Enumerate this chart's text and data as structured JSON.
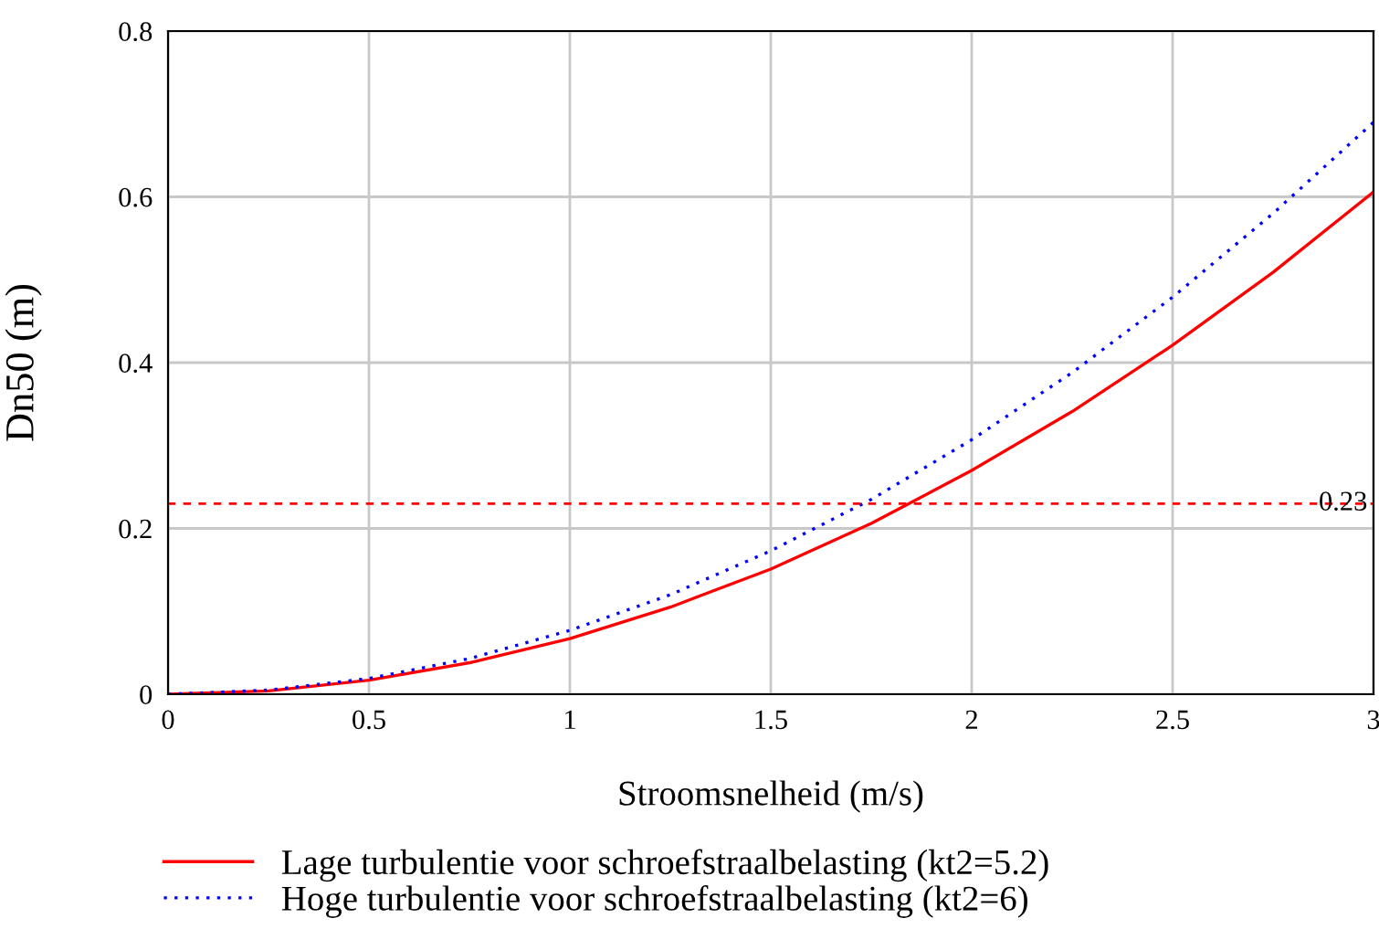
{
  "chart_data": {
    "type": "line",
    "xlabel": "Stroomsnelheid (m/s)",
    "ylabel": "Dn50 (m)",
    "x": [
      0,
      0.25,
      0.5,
      0.75,
      1,
      1.25,
      1.5,
      1.75,
      2,
      2.25,
      2.5,
      2.75,
      3
    ],
    "series": [
      {
        "name": "Lage turbulentie voor schroefstraalbelasting (kt2=5.2)",
        "color": "#ff0000",
        "line_style": "solid",
        "values": [
          0,
          0.004,
          0.017,
          0.038,
          0.067,
          0.105,
          0.151,
          0.206,
          0.27,
          0.341,
          0.421,
          0.509,
          0.606
        ]
      },
      {
        "name": "Hoge turbulentie voor schroefstraalbelasting (kt2=6)",
        "color": "#0000ff",
        "line_style": "dotted",
        "values": [
          0,
          0.005,
          0.019,
          0.043,
          0.077,
          0.12,
          0.173,
          0.235,
          0.307,
          0.388,
          0.479,
          0.58,
          0.69
        ]
      }
    ],
    "xlim": [
      0,
      3
    ],
    "xticks": [
      0,
      0.5,
      1,
      1.5,
      2,
      2.5,
      3
    ],
    "ylim": [
      0,
      0.8
    ],
    "yticks": [
      0,
      0.2,
      0.4,
      0.6,
      0.8
    ],
    "ref_lines": [
      {
        "axis": "y",
        "value": 0.23,
        "label": "0.23",
        "color": "#ff0000",
        "line_style": "dashed"
      }
    ],
    "grid": true,
    "legend": "bottom",
    "marker": "none"
  }
}
